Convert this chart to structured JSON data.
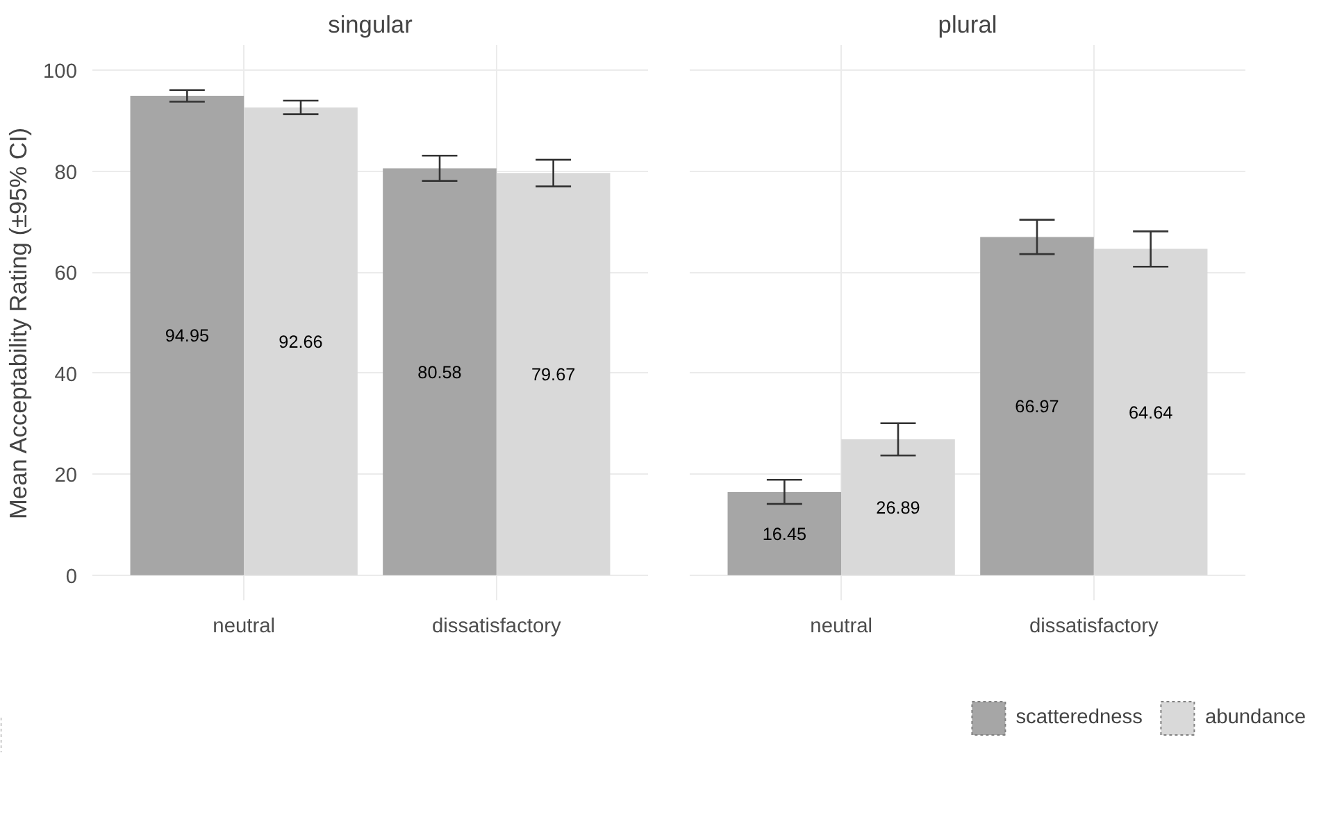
{
  "chart_data": [
    {
      "type": "bar",
      "title": "singular",
      "ylabel": "Mean Acceptability Rating (±95% CI)",
      "categories": [
        "neutral",
        "dissatisfactory"
      ],
      "ylim": [
        -5,
        105
      ],
      "yticks": [
        0,
        20,
        40,
        60,
        80,
        100
      ],
      "grid": true,
      "data_labels": true,
      "series": [
        {
          "color": "#a6a6a6",
          "values": [
            94.95,
            80.58
          ],
          "errors": [
            [
              93.8,
              96.1
            ],
            [
              78.1,
              83.1
            ]
          ]
        },
        {
          "color": "#d9d9d9",
          "values": [
            92.66,
            79.67
          ],
          "errors": [
            [
              91.3,
              94.0
            ],
            [
              77.0,
              82.3
            ]
          ]
        }
      ]
    },
    {
      "type": "bar",
      "title": "plural",
      "categories": [
        "neutral",
        "dissatisfactory"
      ],
      "ylim": [
        -5,
        105
      ],
      "yticks": [
        0,
        20,
        40,
        60,
        80,
        100
      ],
      "grid": true,
      "legend": "bottom right",
      "data_labels": true,
      "tick_labels": "x",
      "series": [
        {
          "name": "scatteredness",
          "color": "#a6a6a6",
          "values": [
            16.45,
            66.97
          ],
          "errors": [
            [
              14.1,
              18.9
            ],
            [
              63.6,
              70.4
            ]
          ]
        },
        {
          "name": "abundance",
          "color": "#d9d9d9",
          "values": [
            26.89,
            64.64
          ],
          "errors": [
            [
              23.7,
              30.1
            ],
            [
              61.1,
              68.1
            ]
          ]
        }
      ]
    }
  ]
}
